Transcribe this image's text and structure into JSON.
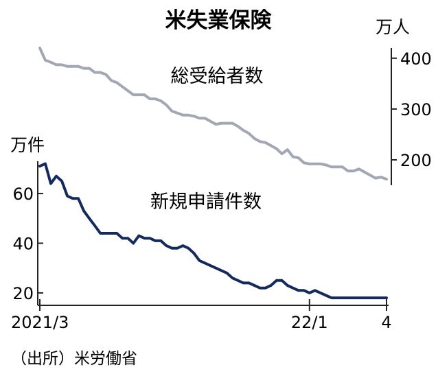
{
  "title": "米失業保険",
  "source": "（出所）米労働省",
  "colors": {
    "continuing": "#a3a6b5",
    "initial": "#142a5c",
    "axis": "#222222",
    "text": "#1a1a1a"
  },
  "chart_data": [
    {
      "type": "line",
      "title": "米失業保険",
      "ylabel": "万人",
      "y_axis_side": "right",
      "ylim": [
        150,
        420
      ],
      "yticks": [
        200,
        300,
        400
      ],
      "ytick_labels": [
        "200",
        "300",
        "400"
      ],
      "series": [
        {
          "name": "総受給者数",
          "values": [
            420,
            396,
            392,
            387,
            387,
            384,
            384,
            384,
            380,
            380,
            372,
            372,
            368,
            356,
            352,
            344,
            336,
            328,
            328,
            328,
            320,
            320,
            316,
            308,
            296,
            292,
            288,
            288,
            286,
            282,
            282,
            276,
            270,
            272,
            272,
            272,
            266,
            258,
            252,
            242,
            236,
            234,
            228,
            222,
            212,
            220,
            206,
            204,
            194,
            192,
            192,
            192,
            190,
            186,
            186,
            186,
            178,
            178,
            182,
            176,
            170,
            164,
            166,
            162
          ]
        }
      ]
    },
    {
      "type": "line",
      "ylabel": "万件",
      "y_axis_side": "left",
      "ylim": [
        15,
        73
      ],
      "yticks": [
        20,
        40,
        60
      ],
      "ytick_labels": [
        "20",
        "40",
        "60"
      ],
      "xtick_labels": [
        "2021/3",
        "22/1",
        "4"
      ],
      "xtick_index": [
        0,
        49,
        63
      ],
      "series": [
        {
          "name": "新規申請件数",
          "values": [
            71,
            72,
            64,
            67,
            65,
            59,
            58,
            58,
            53,
            50,
            47,
            44,
            44,
            44,
            44,
            42,
            42,
            40,
            43,
            42,
            42,
            41,
            41,
            39,
            38,
            38,
            39,
            38,
            36,
            33,
            32,
            31,
            30,
            29,
            28,
            26,
            25,
            24,
            24,
            23,
            22,
            22,
            23,
            25,
            25,
            23,
            22,
            21,
            21,
            20,
            21,
            20,
            19,
            18,
            18,
            18,
            18,
            18,
            18,
            18,
            18,
            18,
            18,
            18
          ]
        }
      ]
    }
  ]
}
